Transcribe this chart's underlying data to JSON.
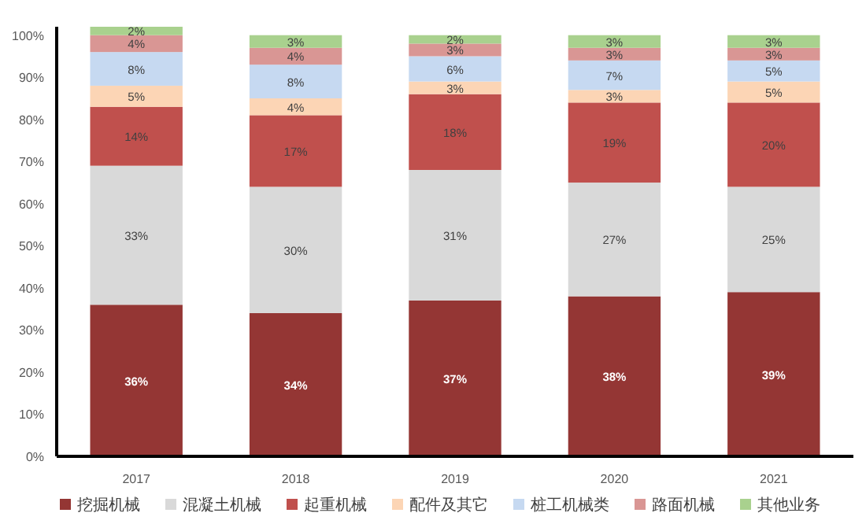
{
  "chart_data": {
    "type": "bar",
    "stacked": true,
    "categories": [
      "2017",
      "2018",
      "2019",
      "2020",
      "2021"
    ],
    "series": [
      {
        "name": "挖掘机械",
        "color": "#943634",
        "values": [
          36,
          34,
          37,
          38,
          39
        ],
        "value_labels": [
          "36%",
          "34%",
          "37%",
          "38%",
          "39%"
        ]
      },
      {
        "name": "混凝土机械",
        "color": "#d9d9d9",
        "values": [
          33,
          30,
          31,
          27,
          25
        ],
        "value_labels": [
          "33%",
          "30%",
          "31%",
          "27%",
          "25%"
        ]
      },
      {
        "name": "起重机械",
        "color": "#c0504d",
        "values": [
          14,
          17,
          18,
          19,
          20
        ],
        "value_labels": [
          "14%",
          "17%",
          "18%",
          "19%",
          "20%"
        ]
      },
      {
        "name": "配件及其它",
        "color": "#fcd5b5",
        "values": [
          5,
          4,
          3,
          3,
          5
        ],
        "value_labels": [
          "5%",
          "4%",
          "3%",
          "3%",
          "5%"
        ]
      },
      {
        "name": "桩工机械类",
        "color": "#c6d9f1",
        "values": [
          8,
          8,
          6,
          7,
          5
        ],
        "value_labels": [
          "8%",
          "8%",
          "6%",
          "7%",
          "5%"
        ]
      },
      {
        "name": "路面机械",
        "color": "#d99694",
        "values": [
          4,
          4,
          3,
          3,
          3
        ],
        "value_labels": [
          "4%",
          "4%",
          "3%",
          "3%",
          "3%"
        ]
      },
      {
        "name": "其他业务",
        "color": "#a9d18e",
        "values": [
          2,
          3,
          2,
          3,
          3
        ],
        "value_labels": [
          "2%",
          "3%",
          "2%",
          "3%",
          "3%"
        ]
      }
    ],
    "ylim": [
      0,
      102
    ],
    "yticks": [
      {
        "value": 0,
        "label": "0%"
      },
      {
        "value": 10,
        "label": "10%"
      },
      {
        "value": 20,
        "label": "20%"
      },
      {
        "value": 30,
        "label": "30%"
      },
      {
        "value": 40,
        "label": "40%"
      },
      {
        "value": 50,
        "label": "50%"
      },
      {
        "value": 60,
        "label": "60%"
      },
      {
        "value": 70,
        "label": "70%"
      },
      {
        "value": 80,
        "label": "80%"
      },
      {
        "value": 90,
        "label": "90%"
      },
      {
        "value": 100,
        "label": "100%"
      }
    ],
    "grid": false,
    "legend": "bottom"
  }
}
